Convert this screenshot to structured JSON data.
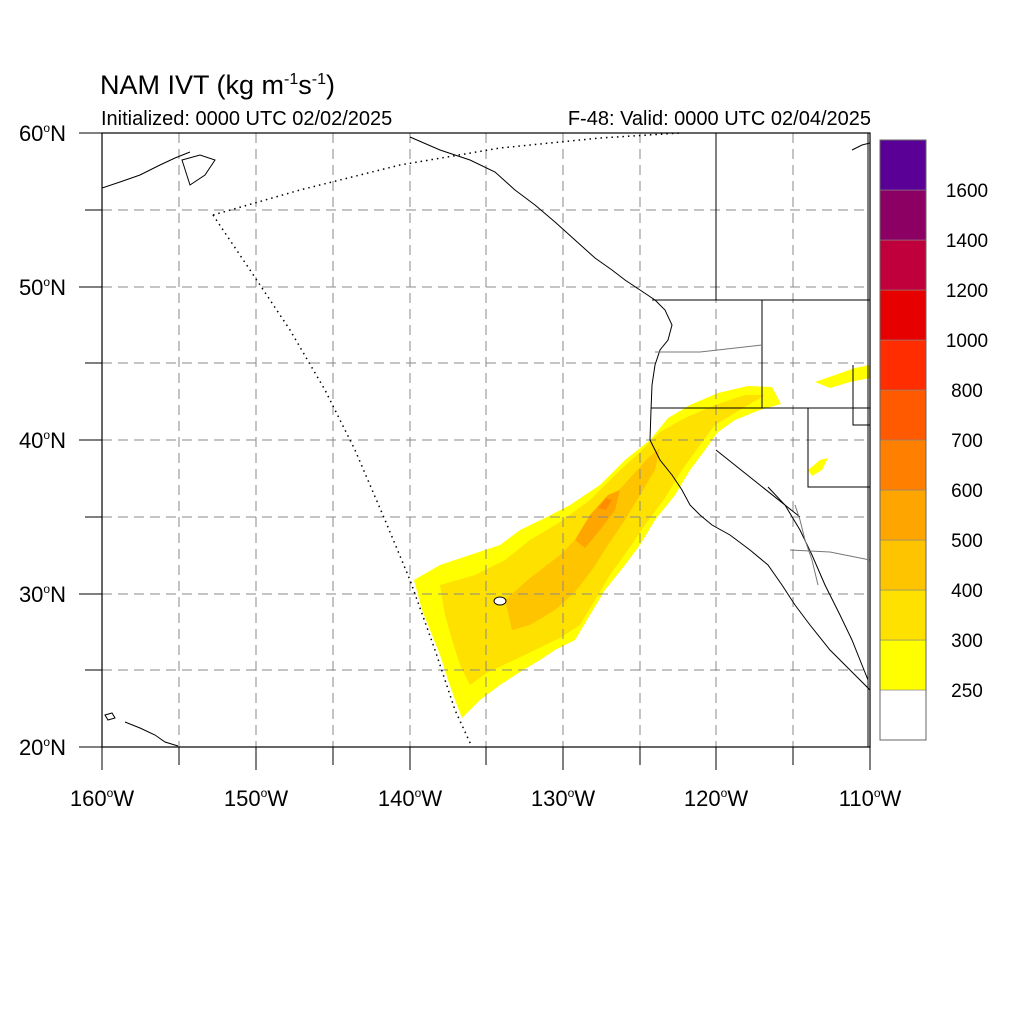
{
  "title": {
    "main": "NAM IVT (kg m",
    "sup1": "-1",
    "mid": "s",
    "sup2": "-1",
    "end": ")"
  },
  "subtitle": {
    "initialized": "Initialized: 0000 UTC 02/02/2025",
    "valid": "F-48: Valid: 0000 UTC 02/04/2025"
  },
  "lat_labels": [
    "60",
    "50",
    "40",
    "30",
    "20"
  ],
  "lon_labels": [
    "160",
    "150",
    "140",
    "130",
    "120",
    "110"
  ],
  "lat_suffix": "N",
  "lon_suffix": "W",
  "colorbar": {
    "levels": [
      "1600",
      "1400",
      "1200",
      "1000",
      "800",
      "700",
      "600",
      "500",
      "400",
      "300",
      "250"
    ],
    "colors": [
      "#ffffff",
      "#ffff00",
      "#ffe100",
      "#ffc400",
      "#ffa500",
      "#ff8000",
      "#ff5a00",
      "#ff2d00",
      "#e60000",
      "#c0003c",
      "#8c0064",
      "#5a0096"
    ]
  },
  "map": {
    "extent": {
      "lon": [
        -160,
        -110
      ],
      "lat": [
        20,
        60
      ]
    },
    "field": "Integrated Vapor Transport"
  }
}
